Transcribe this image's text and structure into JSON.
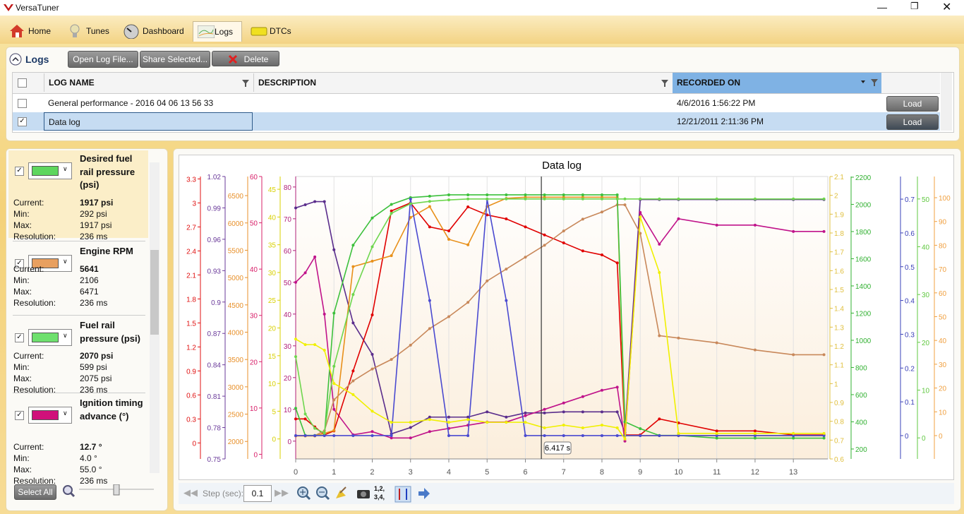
{
  "window": {
    "title": "VersaTuner"
  },
  "tabs": [
    "Home",
    "Tunes",
    "Dashboard",
    "Logs",
    "DTCs"
  ],
  "logs_panel": {
    "title": "Logs",
    "buttons": [
      "Open Log File...",
      "Share Selected...",
      "Delete"
    ],
    "columns": [
      "LOG NAME",
      "DESCRIPTION",
      "RECORDED ON"
    ],
    "rows": [
      {
        "name": "General performance - 2016 04 06 13 56 33",
        "recorded": "4/6/2016 1:56:22 PM",
        "action": "Load"
      },
      {
        "name": "Data log",
        "recorded": "12/21/2011 2:11:36 PM",
        "action": "Load"
      }
    ]
  },
  "sensor_labels": {
    "current": "Current:",
    "min": "Min:",
    "max": "Max:",
    "resolution": "Resolution:"
  },
  "sensors": [
    {
      "name": "Desired fuel rail pressure (psi)",
      "color": "#5ed65e",
      "current": "1917 psi",
      "min": "292 psi",
      "max": "1917 psi",
      "resolution": "236 ms"
    },
    {
      "name": "Engine RPM",
      "color": "#e8a060",
      "current": "5641",
      "min": "2106",
      "max": "6471",
      "resolution": "236 ms"
    },
    {
      "name": "Fuel rail pressure (psi)",
      "color": "#6ee06e",
      "current": "2070 psi",
      "min": "599 psi",
      "max": "2075 psi",
      "resolution": "236 ms"
    },
    {
      "name": "Ignition timing advance (°)",
      "color": "#d0107a",
      "current": "12.7 °",
      "min": "4.0 °",
      "max": "55.0 °",
      "resolution": "236 ms"
    }
  ],
  "select_all": "Select All",
  "toolbar": {
    "step_label": "Step (sec):",
    "step_value": "0.1",
    "order_icon": [
      "1,2,",
      "3,4,"
    ]
  },
  "chart_data": {
    "type": "line",
    "title": "Data log",
    "grid": true,
    "xlim": [
      0,
      13.9
    ],
    "xticks": [
      0,
      1,
      2,
      3,
      4,
      5,
      6,
      7,
      8,
      9,
      10,
      11,
      12,
      13
    ],
    "cursor": {
      "x": 6.417,
      "label": "6.417 s"
    },
    "axes": [
      {
        "side": "left",
        "color": "#e01010",
        "ylim": [
          -0.2,
          3.33
        ],
        "yticks": [
          3.3,
          3,
          2.7,
          2.4,
          2.1,
          1.8,
          1.5,
          1.2,
          0.9,
          0.6,
          0.3,
          0
        ]
      },
      {
        "side": "left",
        "color": "#6a3a9a",
        "ylim": [
          0.75,
          1.02
        ],
        "yticks": [
          1.02,
          0.99,
          0.96,
          0.93,
          0.9,
          0.87,
          0.84,
          0.81,
          0.78,
          0.75
        ]
      },
      {
        "side": "left",
        "color": "#e8902a",
        "ylim": [
          1680,
          6850
        ],
        "yticks": [
          6500,
          6000,
          5500,
          5000,
          4500,
          4000,
          3500,
          3000,
          2500,
          2000
        ]
      },
      {
        "side": "left",
        "color": "#d8206a",
        "ylim": [
          -1,
          60
        ],
        "yticks": [
          60,
          50,
          40,
          30,
          20,
          10,
          0
        ]
      },
      {
        "side": "left",
        "color": "#d8d000",
        "ylim": [
          -3.6,
          47.3
        ],
        "yticks": [
          45,
          40,
          35,
          30,
          25,
          20,
          15,
          10,
          5,
          0
        ]
      },
      {
        "side": "left",
        "color": "#b0207a",
        "ylim": [
          -5.6,
          83.3
        ],
        "yticks": [
          80,
          70,
          60,
          50,
          40,
          30,
          20,
          10,
          0
        ]
      },
      {
        "side": "right",
        "color": "#e0c040",
        "ylim": [
          0.6,
          2.1
        ],
        "yticks": [
          2.1,
          2,
          1.9,
          1.8,
          1.7,
          1.6,
          1.5,
          1.4,
          1.3,
          1.2,
          1.1,
          1,
          0.9,
          0.8,
          0.7,
          0.6
        ]
      },
      {
        "side": "right",
        "color": "#30b030",
        "ylim": [
          127,
          2205
        ],
        "yticks": [
          2200,
          2000,
          1800,
          1600,
          1400,
          1200,
          1000,
          800,
          600,
          400,
          200
        ]
      },
      {
        "side": "right",
        "color": "#3a40b8",
        "ylim": [
          -0.069,
          0.767
        ],
        "yticks": [
          0.7,
          0.6,
          0.5,
          0.4,
          0.3,
          0.2,
          0.1,
          0
        ]
      },
      {
        "side": "right",
        "color": "#60c840",
        "ylim": [
          -4.4,
          54.7
        ],
        "yticks": [
          50,
          40,
          30,
          20,
          10,
          0
        ]
      },
      {
        "side": "right",
        "color": "#f0a040",
        "ylim": [
          -9.8,
          108.9
        ],
        "yticks": [
          100,
          90,
          80,
          70,
          60,
          50,
          40,
          30,
          20,
          10,
          0
        ]
      }
    ],
    "x": [
      0,
      0.25,
      0.5,
      0.75,
      1,
      1.5,
      2,
      2.5,
      3,
      3.5,
      4,
      4.5,
      5,
      5.5,
      6,
      6.5,
      7,
      7.5,
      8,
      8.4,
      8.6,
      9,
      9.5,
      10,
      11,
      12,
      13,
      13.8
    ],
    "series": [
      {
        "color": "#5a2d8c",
        "axis": 1,
        "values": [
          0.99,
          0.993,
          0.996,
          0.996,
          0.95,
          0.88,
          0.85,
          0.774,
          0.78,
          0.79,
          0.79,
          0.79,
          0.795,
          0.79,
          0.794,
          0.794,
          0.795,
          0.795,
          0.795,
          0.795,
          0.775,
          0.998,
          0.998,
          0.998,
          0.998,
          0.998,
          0.998,
          0.998
        ]
      },
      {
        "color": "#c0138a",
        "axis": 5,
        "values": [
          50,
          53,
          58,
          40,
          10,
          2,
          3,
          1,
          1,
          3,
          4,
          5,
          6,
          6,
          8,
          10,
          12,
          14,
          16,
          17,
          0,
          72,
          62,
          70,
          68,
          68,
          66,
          66
        ]
      },
      {
        "color": "#e00000",
        "axis": 0,
        "values": [
          0.3,
          0.3,
          0.2,
          0.1,
          0.15,
          0.9,
          1.6,
          2.9,
          3.0,
          2.7,
          2.65,
          2.95,
          2.85,
          2.8,
          2.7,
          2.6,
          2.5,
          2.4,
          2.35,
          2.25,
          0.1,
          0.1,
          0.3,
          0.25,
          0.15,
          0.15,
          0.1,
          0.1
        ]
      },
      {
        "color": "#e8901a",
        "axis": 2,
        "values": [
          2100,
          2100,
          2100,
          2150,
          2200,
          5200,
          5300,
          5400,
          6100,
          6300,
          5700,
          5600,
          6300,
          6450,
          6471,
          6471,
          6471,
          6471,
          6471,
          6471,
          2106,
          2106,
          2106,
          2106,
          2106,
          2106,
          2106,
          2106
        ]
      },
      {
        "color": "#c8885a",
        "axis": 10,
        "values": [
          0,
          0,
          0,
          2,
          15,
          23,
          28,
          32,
          38,
          45,
          50,
          56,
          65,
          70,
          75,
          80,
          86,
          91,
          94,
          97,
          97,
          85,
          42,
          41,
          39,
          36,
          34,
          34
        ]
      },
      {
        "color": "#3cc03c",
        "axis": 7,
        "values": [
          500,
          300,
          300,
          300,
          1200,
          1700,
          1900,
          2000,
          2050,
          2060,
          2070,
          2070,
          2070,
          2070,
          2070,
          2070,
          2070,
          2070,
          2070,
          2070,
          400,
          350,
          300,
          300,
          280,
          280,
          280,
          280
        ]
      },
      {
        "color": "#4a4ad0",
        "axis": 8,
        "values": [
          0,
          0,
          0,
          0,
          0,
          0,
          0,
          0,
          0.7,
          0.4,
          0,
          0,
          0.7,
          0.4,
          0,
          0,
          0,
          0,
          0,
          0,
          0,
          0,
          0,
          0,
          0,
          0,
          0,
          0
        ]
      },
      {
        "color": "#f0f000",
        "axis": 4,
        "values": [
          18,
          17,
          17,
          16,
          10,
          8,
          5,
          3,
          3,
          3.5,
          3,
          3.5,
          3,
          3,
          3,
          2,
          2.5,
          2,
          2.5,
          2,
          0,
          40,
          30,
          1,
          1,
          1,
          1,
          1
        ]
      },
      {
        "color": "#6ed64e",
        "axis": 9,
        "values": [
          17,
          5,
          2,
          1,
          15,
          30,
          40,
          47,
          49,
          49.5,
          49.8,
          50,
          50,
          50,
          50,
          50,
          50,
          50,
          50,
          50,
          50,
          50,
          50,
          50,
          50,
          50,
          50,
          50
        ]
      }
    ]
  }
}
